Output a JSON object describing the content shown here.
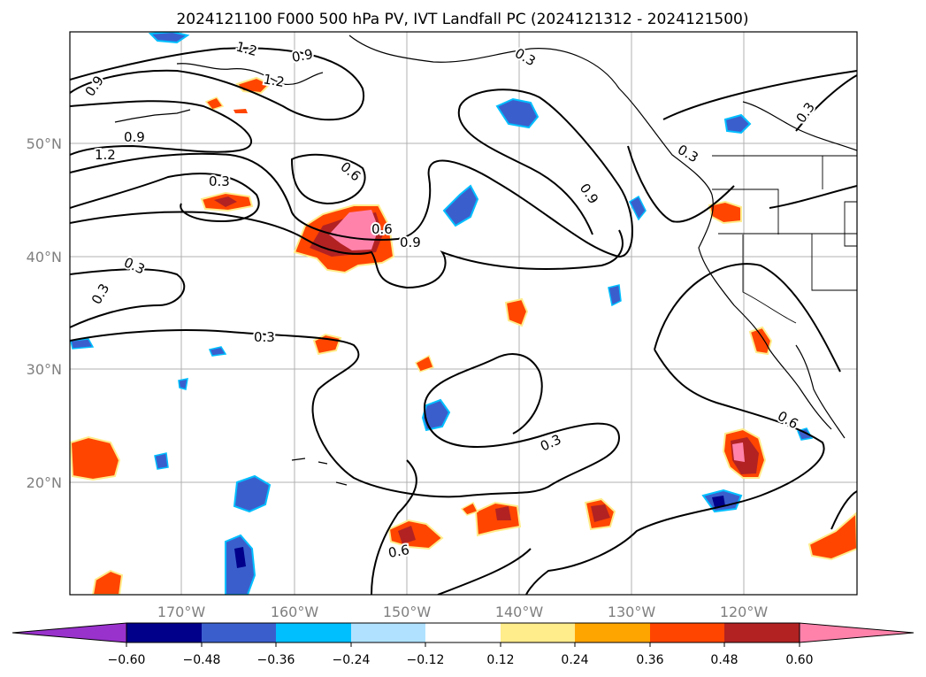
{
  "title": "2024121100 F000 500 hPa PV, IVT Landfall PC (2024121312 - 2024121500)",
  "map": {
    "lon_ticks": [
      "170°W",
      "160°W",
      "150°W",
      "140°W",
      "130°W",
      "120°W"
    ],
    "lat_ticks": [
      "50°N",
      "40°N",
      "30°N",
      "20°N"
    ],
    "gridlines": true
  },
  "contours": {
    "labels": [
      "1.2",
      "0.9",
      "1.2",
      "0.9",
      "0.3",
      "0.9",
      "0.3",
      "1.2",
      "0.3",
      "0.6",
      "0.3",
      "0.9",
      "0.6",
      "0.9",
      "0.3",
      "0.3",
      "0.3",
      "0.6",
      "0.3",
      "0.6"
    ],
    "color": "#000000"
  },
  "colorbar": {
    "ticks": [
      "−0.60",
      "−0.48",
      "−0.36",
      "−0.24",
      "−0.12",
      "0.12",
      "0.24",
      "0.36",
      "0.48",
      "0.60"
    ],
    "colors": [
      "#9932cc",
      "#00008b",
      "#3a5fcd",
      "#00bfff",
      "#b0e2ff",
      "#ffffff",
      "#ffec8b",
      "#ffa500",
      "#ff4500",
      "#b22222",
      "#ff82ab"
    ]
  }
}
